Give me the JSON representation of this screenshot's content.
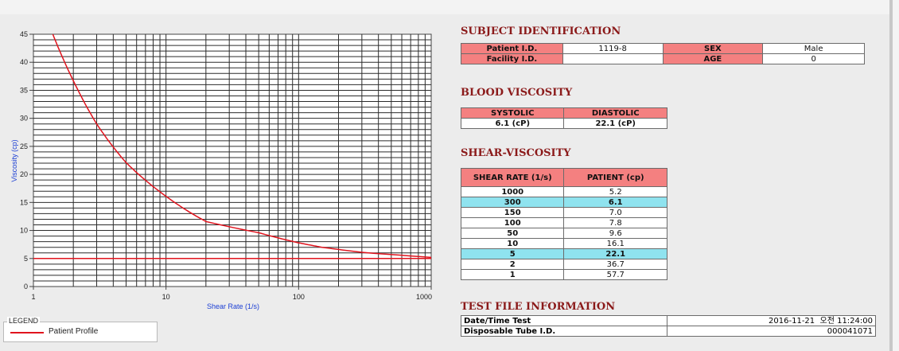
{
  "chart": {
    "yticks": [
      "0",
      "5",
      "10",
      "15",
      "20",
      "25",
      "30",
      "35",
      "40",
      "45"
    ],
    "xticks": [
      "1",
      "10",
      "100",
      "1000"
    ],
    "xlabel": "Shear Rate (1/s)",
    "ylabel": "Viscosity (cp)",
    "line_color": "#e0141e",
    "grid": true,
    "xscale": "log",
    "xlim": [
      1,
      1000
    ],
    "ylim": [
      0,
      45
    ]
  },
  "chart_data": {
    "type": "line",
    "x_scale": "log",
    "xlim": [
      1,
      1000
    ],
    "ylim": [
      0,
      45
    ],
    "xlabel": "Shear Rate (1/s)",
    "ylabel": "Viscosity (cp)",
    "series": [
      {
        "name": "Patient Profile",
        "x": [
          1.4,
          2,
          3,
          5,
          10,
          20,
          50,
          100,
          150,
          300,
          1000
        ],
        "y": [
          45,
          36.7,
          29,
          22.1,
          16.1,
          11.6,
          9.6,
          7.8,
          7.0,
          6.1,
          5.2
        ]
      },
      {
        "name": "",
        "x": [
          1,
          1000
        ],
        "y": [
          5,
          5
        ]
      }
    ]
  },
  "legend": {
    "title": "LEGEND",
    "items": [
      {
        "label": "Patient Profile",
        "color": "#e0141e"
      }
    ]
  },
  "subject": {
    "title": "SUBJECT IDENTIFICATION",
    "rows": [
      [
        "Patient I.D.",
        "1119-8",
        "SEX",
        "Male"
      ],
      [
        "Facility I.D.",
        "",
        "AGE",
        "0"
      ]
    ]
  },
  "blood": {
    "title": "BLOOD VISCOSITY",
    "headers": [
      "SYSTOLIC",
      "DIASTOLIC"
    ],
    "values": [
      "6.1 (cP)",
      "22.1 (cP)"
    ]
  },
  "shear": {
    "title": "SHEAR-VISCOSITY",
    "headers": [
      "SHEAR RATE (1/s)",
      "PATIENT (cp)"
    ],
    "rows": [
      {
        "rate": "1000",
        "patient": "5.2",
        "highlight": false
      },
      {
        "rate": "300",
        "patient": "6.1",
        "highlight": true
      },
      {
        "rate": "150",
        "patient": "7.0",
        "highlight": false
      },
      {
        "rate": "100",
        "patient": "7.8",
        "highlight": false
      },
      {
        "rate": "50",
        "patient": "9.6",
        "highlight": false
      },
      {
        "rate": "10",
        "patient": "16.1",
        "highlight": false
      },
      {
        "rate": "5",
        "patient": "22.1",
        "highlight": true
      },
      {
        "rate": "2",
        "patient": "36.7",
        "highlight": false
      },
      {
        "rate": "1",
        "patient": "57.7",
        "highlight": false
      }
    ],
    "highlight_color": "#8fe3ef"
  },
  "testfile": {
    "title": "TEST FILE INFORMATION",
    "rows": [
      {
        "label": "Date/Time Test",
        "value": "2016-11-21  오전 11:24:00"
      },
      {
        "label": "Disposable Tube I.D.",
        "value": "000041071"
      }
    ]
  },
  "colors": {
    "header_bg": "#f48080",
    "title_color": "#8b1a1a"
  }
}
